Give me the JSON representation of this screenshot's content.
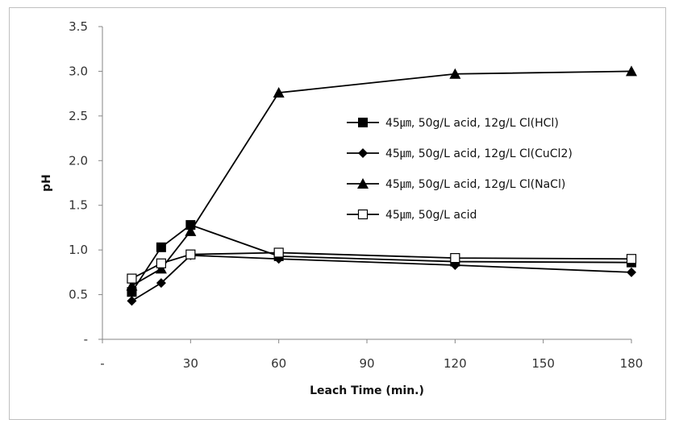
{
  "chart_data": {
    "type": "line",
    "title": "",
    "xlabel": "Leach Time (min.)",
    "ylabel": "pH",
    "xlim": [
      0,
      180
    ],
    "ylim": [
      0,
      3.5
    ],
    "x_ticks": [
      0,
      30,
      60,
      90,
      120,
      150,
      180
    ],
    "x_tick_labels": [
      "-",
      "30",
      "60",
      "90",
      "120",
      "150",
      "180"
    ],
    "y_ticks": [
      0,
      0.5,
      1.0,
      1.5,
      2.0,
      2.5,
      3.0,
      3.5
    ],
    "y_tick_labels": [
      "-",
      "0.5",
      "1.0",
      "1.5",
      "2.0",
      "2.5",
      "3.0",
      "3.5"
    ],
    "grid": false,
    "legend_position": "right",
    "series": [
      {
        "name": "45㎛, 50g/L acid, 12g/L Cl(HCl)",
        "marker": "square-filled",
        "x": [
          10,
          20,
          30,
          60,
          120,
          180
        ],
        "y": [
          0.53,
          1.03,
          1.28,
          0.93,
          0.87,
          0.86
        ]
      },
      {
        "name": "45㎛, 50g/L acid, 12g/L Cl(CuCl2)",
        "marker": "diamond-filled",
        "x": [
          10,
          20,
          30,
          60,
          120,
          180
        ],
        "y": [
          0.43,
          0.63,
          0.94,
          0.9,
          0.83,
          0.75
        ]
      },
      {
        "name": "45㎛, 50g/L acid, 12g/L Cl(NaCl)",
        "marker": "triangle-filled",
        "x": [
          10,
          20,
          30,
          60,
          120,
          180
        ],
        "y": [
          0.6,
          0.79,
          1.21,
          2.76,
          2.97,
          3.0
        ]
      },
      {
        "name": "45㎛, 50g/L acid",
        "marker": "square-open",
        "x": [
          10,
          20,
          30,
          60,
          120,
          180
        ],
        "y": [
          0.68,
          0.85,
          0.95,
          0.97,
          0.91,
          0.9
        ]
      }
    ]
  }
}
